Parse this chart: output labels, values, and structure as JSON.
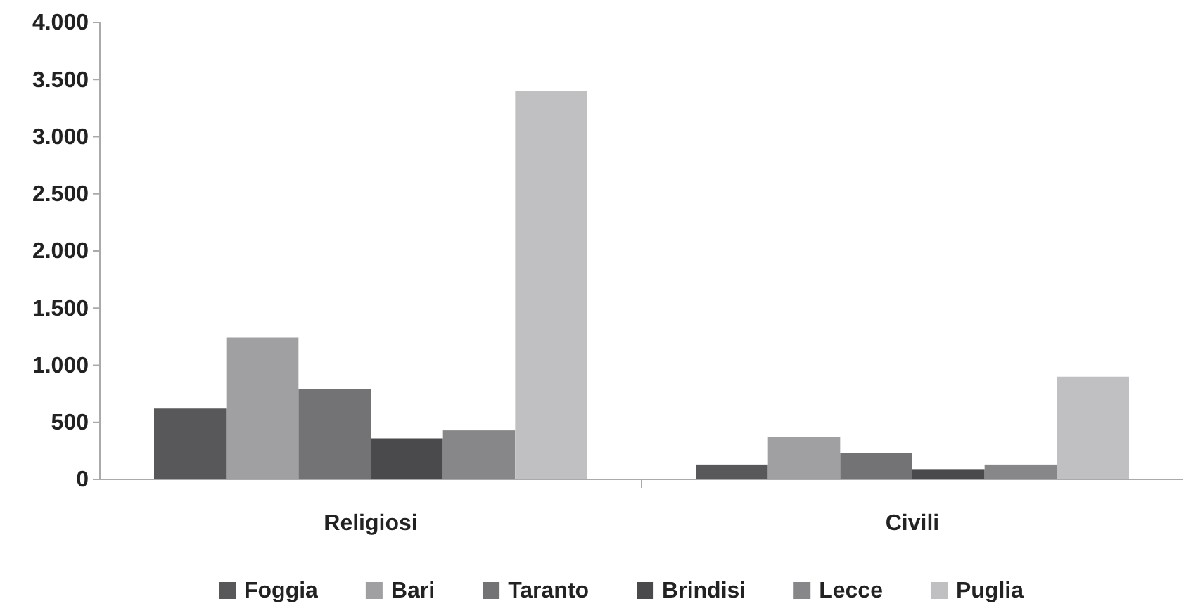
{
  "chart_data": {
    "type": "bar",
    "categories": [
      "Religiosi",
      "Civili"
    ],
    "series": [
      {
        "name": "Foggia",
        "color": "#58585a",
        "values": [
          620,
          130
        ]
      },
      {
        "name": "Bari",
        "color": "#a0a0a3",
        "values": [
          1240,
          370
        ]
      },
      {
        "name": "Taranto",
        "color": "#737375",
        "values": [
          790,
          230
        ]
      },
      {
        "name": "Brindisi",
        "color": "#4a4a4c",
        "values": [
          360,
          90
        ]
      },
      {
        "name": "Lecce",
        "color": "#87878a",
        "values": [
          430,
          130
        ]
      },
      {
        "name": "Puglia",
        "color": "#c0c0c2",
        "values": [
          3400,
          900
        ]
      }
    ],
    "ylim": [
      0,
      4000
    ],
    "yticks": [
      {
        "value": 0,
        "label": "0"
      },
      {
        "value": 500,
        "label": "500"
      },
      {
        "value": 1000,
        "label": "1.000"
      },
      {
        "value": 1500,
        "label": "1.500"
      },
      {
        "value": 2000,
        "label": "2.000"
      },
      {
        "value": 2500,
        "label": "2.500"
      },
      {
        "value": 3000,
        "label": "3.000"
      },
      {
        "value": 3500,
        "label": "3.500"
      },
      {
        "value": 4000,
        "label": "4.000"
      }
    ],
    "grid": false,
    "legend": "bottom"
  }
}
